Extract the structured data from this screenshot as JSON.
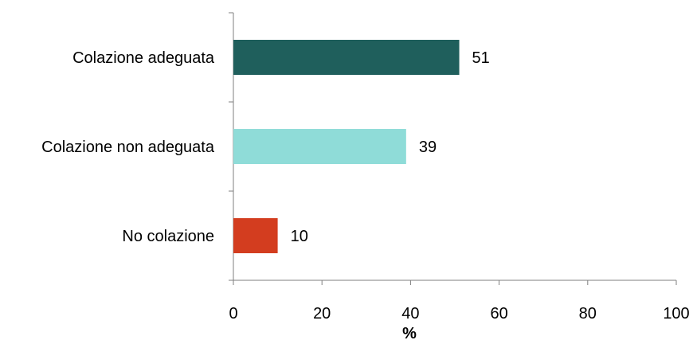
{
  "chart_data": {
    "type": "bar",
    "orientation": "horizontal",
    "categories": [
      "Colazione adeguata",
      "Colazione non adeguata",
      "No colazione"
    ],
    "values": [
      51,
      39,
      10
    ],
    "data_labels": [
      "51",
      "39",
      "10"
    ],
    "colors": [
      "#1f5f5c",
      "#8fdcd8",
      "#d33d1f"
    ],
    "xlabel": "%",
    "ylabel": "",
    "title": "",
    "xlim": [
      0,
      100
    ],
    "x_ticks": [
      0,
      20,
      40,
      60,
      80,
      100
    ],
    "x_tick_labels": [
      "0",
      "20",
      "40",
      "60",
      "80",
      "100"
    ],
    "grid": false,
    "legend": "none"
  }
}
